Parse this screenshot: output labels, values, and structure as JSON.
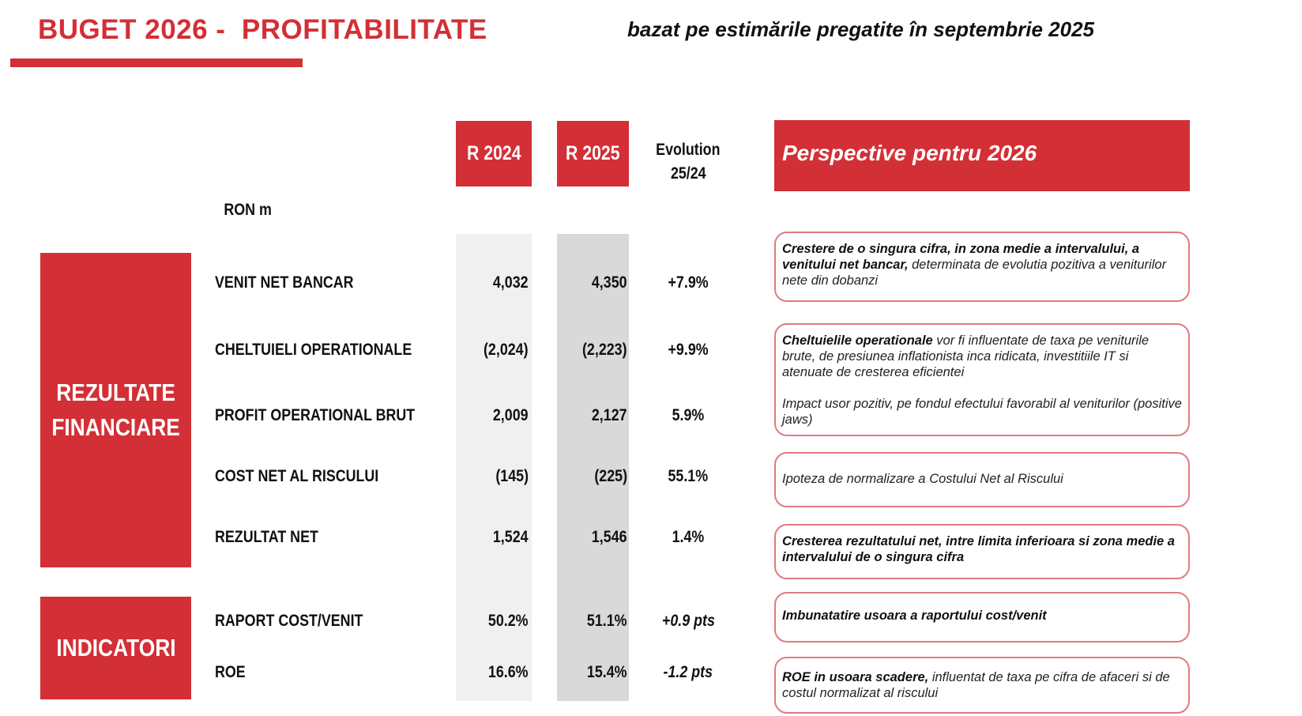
{
  "title": "BUGET 2026 -  PROFITABILITATE",
  "subtitle": "bazat pe estimările pregatite în septembrie 2025",
  "colors": {
    "accent": "#d32f36",
    "gray_light": "#f0f0f0",
    "gray_dark": "#d9d9d9",
    "box_border": "#e07a82"
  },
  "columns": {
    "r2024": "R 2024",
    "r2025": "R 2025",
    "evolution_line1": "Evolution",
    "evolution_line2": "25/24"
  },
  "perspective_title": "Perspective pentru 2026",
  "unit": "RON m",
  "sections": {
    "financial": "REZULTATE FINANCIARE",
    "indicators": "INDICATORI"
  },
  "rows": [
    {
      "label": "VENIT NET BANCAR",
      "r2024": "4,032",
      "r2025": "4,350",
      "evolution": "+7.9%"
    },
    {
      "label": "CHELTUIELI OPERATIONALE",
      "r2024": "(2,024)",
      "r2025": "(2,223)",
      "evolution": "+9.9%"
    },
    {
      "label": "PROFIT OPERATIONAL BRUT",
      "r2024": "2,009",
      "r2025": "2,127",
      "evolution": "5.9%"
    },
    {
      "label": "COST NET AL RISCULUI",
      "r2024": "(145)",
      "r2025": "(225)",
      "evolution": "55.1%"
    },
    {
      "label": "REZULTAT NET",
      "r2024": "1,524",
      "r2025": "1,546",
      "evolution": "1.4%"
    },
    {
      "label": "RAPORT COST/VENIT",
      "r2024": "50.2%",
      "r2025": "51.1%",
      "evolution": "+0.9 pts"
    },
    {
      "label": "ROE",
      "r2024": "16.6%",
      "r2025": "15.4%",
      "evolution": "-1.2 pts"
    }
  ],
  "outlook": [
    {
      "bold": "Crestere de o singura cifra, in zona medie a intervalului, a venitului net bancar,",
      "text": " determinata de evolutia  pozitiva a veniturilor nete din dobanzi"
    },
    {
      "bold": "Cheltuielile operationale",
      "text": " vor fi influentate de taxa pe veniturile brute, de presiunea inflationista inca ridicata, investitiile IT si atenuate de cresterea eficientei",
      "text2": "Impact usor pozitiv, pe fondul efectului favorabil al veniturilor (positive jaws)"
    },
    {
      "bold": "",
      "text": "Ipoteza de normalizare a Costului Net al Riscului"
    },
    {
      "bold": "Cresterea rezultatului net, intre limita inferioara si zona medie a intervalului de o singura cifra",
      "text": ""
    },
    {
      "bold": "Imbunatatire usoara a raportului cost/venit",
      "text": ""
    },
    {
      "bold": "ROE in usoara scadere,",
      "text": " influentat de taxa pe cifra de afaceri si de costul normalizat al riscului"
    }
  ]
}
